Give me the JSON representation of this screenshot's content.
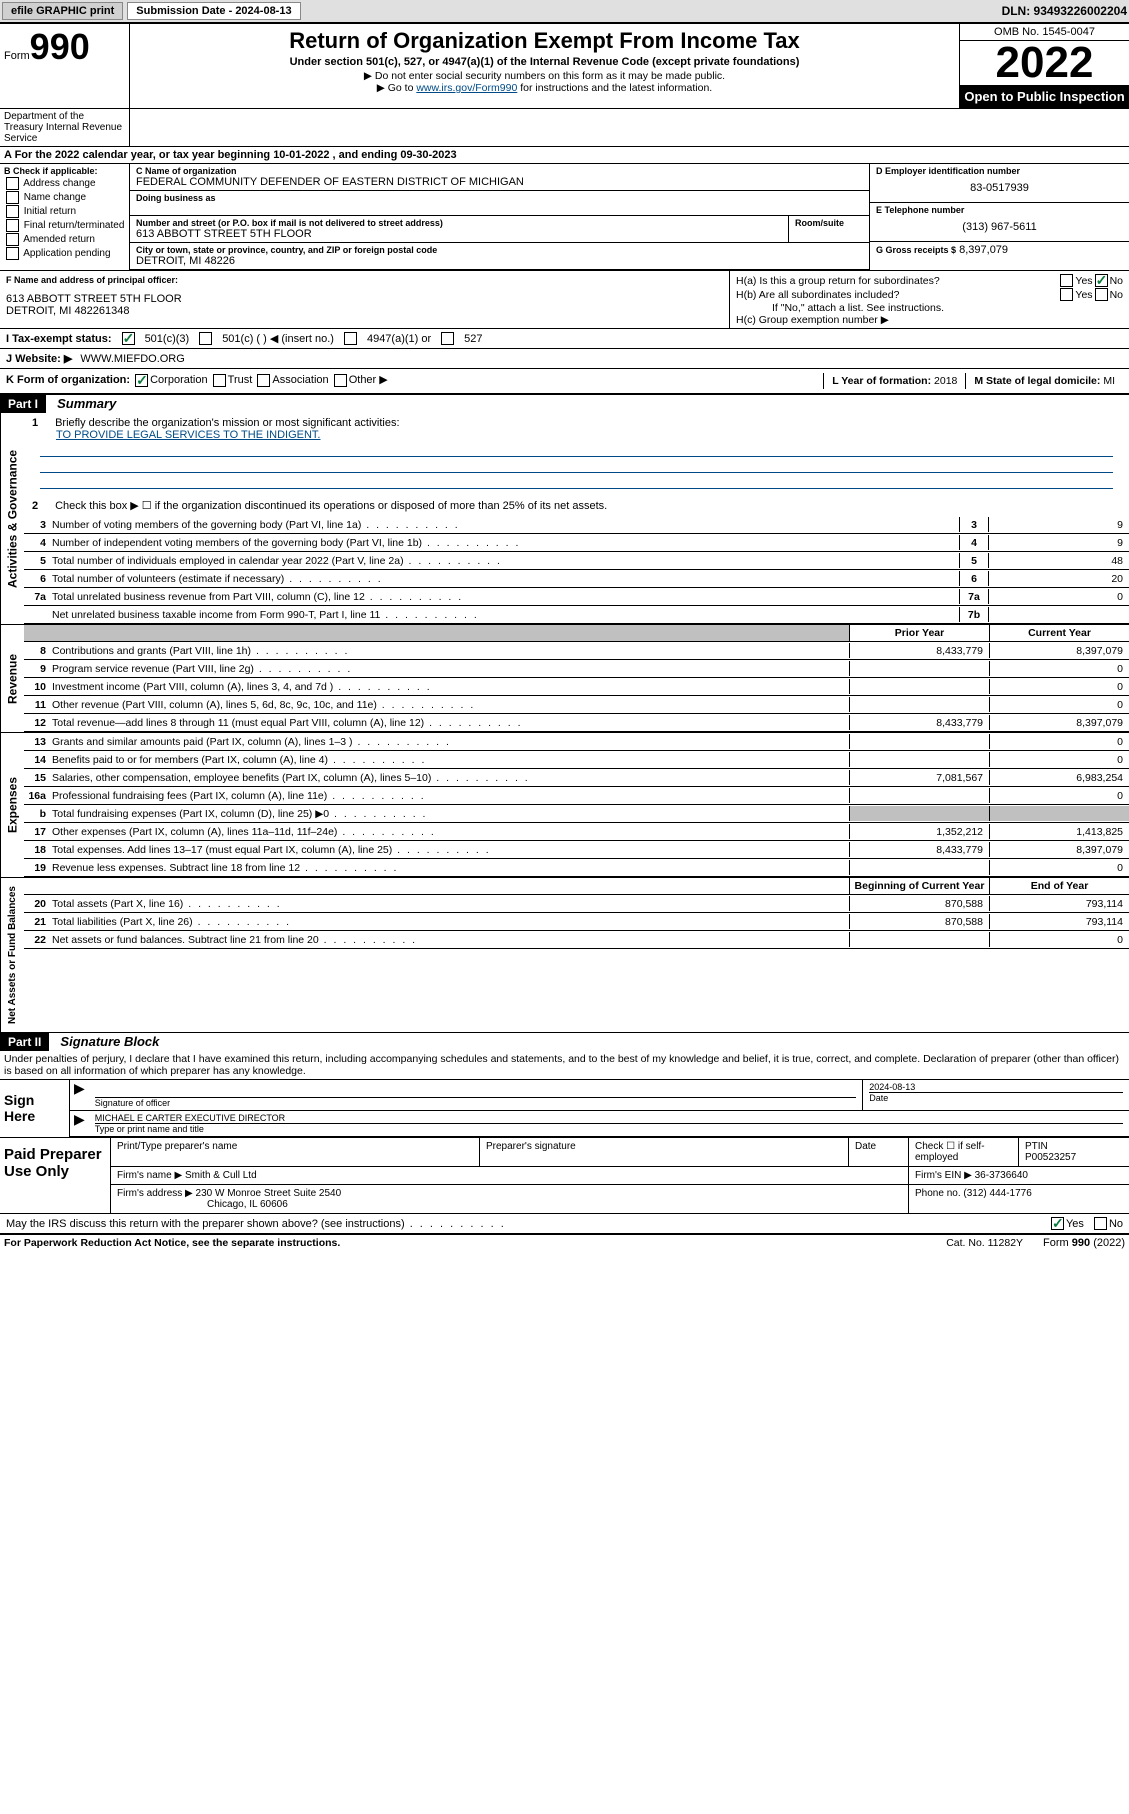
{
  "topbar": {
    "efile_label": "efile GRAPHIC print",
    "submission_label": "Submission Date - 2024-08-13",
    "dln": "DLN: 93493226002204"
  },
  "header": {
    "form_prefix": "Form",
    "form_number": "990",
    "title": "Return of Organization Exempt From Income Tax",
    "subtitle": "Under section 501(c), 527, or 4947(a)(1) of the Internal Revenue Code (except private foundations)",
    "warn": "▶ Do not enter social security numbers on this form as it may be made public.",
    "goto": "▶ Go to ",
    "goto_link": "www.irs.gov/Form990",
    "goto_suffix": " for instructions and the latest information.",
    "omb": "OMB No. 1545-0047",
    "year": "2022",
    "open_public": "Open to Public Inspection",
    "dept": "Department of the Treasury Internal Revenue Service"
  },
  "row_a": "A For the 2022 calendar year, or tax year beginning 10-01-2022   , and ending 09-30-2023",
  "section_b": {
    "label": "B Check if applicable:",
    "opts": [
      "Address change",
      "Name change",
      "Initial return",
      "Final return/terminated",
      "Amended return",
      "Application pending"
    ]
  },
  "section_c": {
    "name_label": "C Name of organization",
    "name": "FEDERAL COMMUNITY DEFENDER OF EASTERN DISTRICT OF MICHIGAN",
    "dba_label": "Doing business as",
    "addr_label": "Number and street (or P.O. box if mail is not delivered to street address)",
    "addr": "613 ABBOTT STREET 5TH FLOOR",
    "room_label": "Room/suite",
    "city_label": "City or town, state or province, country, and ZIP or foreign postal code",
    "city": "DETROIT, MI  48226"
  },
  "section_d": {
    "ein_label": "D Employer identification number",
    "ein": "83-0517939",
    "tel_label": "E Telephone number",
    "tel": "(313) 967-5611",
    "gross_label": "G Gross receipts $",
    "gross": "8,397,079"
  },
  "section_f": {
    "label": "F Name and address of principal officer:",
    "addr1": "613 ABBOTT STREET 5TH FLOOR",
    "addr2": "DETROIT, MI  482261348"
  },
  "section_h": {
    "ha": "H(a)  Is this a group return for subordinates?",
    "hb": "H(b)  Are all subordinates included?",
    "hb_note": "If \"No,\" attach a list. See instructions.",
    "hc": "H(c)  Group exemption number ▶",
    "yes": "Yes",
    "no": "No"
  },
  "row_i": {
    "label": "I   Tax-exempt status:",
    "opt1": "501(c)(3)",
    "opt2": "501(c) (  ) ◀ (insert no.)",
    "opt3": "4947(a)(1) or",
    "opt4": "527"
  },
  "row_j": {
    "label": "J   Website: ▶",
    "value": "WWW.MIEFDO.ORG"
  },
  "row_k": {
    "label": "K Form of organization:",
    "opts": [
      "Corporation",
      "Trust",
      "Association",
      "Other ▶"
    ],
    "l_label": "L Year of formation: ",
    "l_val": "2018",
    "m_label": "M State of legal domicile: ",
    "m_val": "MI"
  },
  "part1": {
    "header": "Part I",
    "title": "Summary",
    "line1_label": "Briefly describe the organization's mission or most significant activities:",
    "line1_text": "TO PROVIDE LEGAL SERVICES TO THE INDIGENT.",
    "line2": "Check this box ▶ ☐  if the organization discontinued its operations or disposed of more than 25% of its net assets.",
    "vert_gov": "Activities & Governance",
    "vert_rev": "Revenue",
    "vert_exp": "Expenses",
    "vert_net": "Net Assets or Fund Balances",
    "lines_num": [
      {
        "n": "3",
        "t": "Number of voting members of the governing body (Part VI, line 1a)",
        "box": "3",
        "v": "9"
      },
      {
        "n": "4",
        "t": "Number of independent voting members of the governing body (Part VI, line 1b)",
        "box": "4",
        "v": "9"
      },
      {
        "n": "5",
        "t": "Total number of individuals employed in calendar year 2022 (Part V, line 2a)",
        "box": "5",
        "v": "48"
      },
      {
        "n": "6",
        "t": "Total number of volunteers (estimate if necessary)",
        "box": "6",
        "v": "20"
      },
      {
        "n": "7a",
        "t": "Total unrelated business revenue from Part VIII, column (C), line 12",
        "box": "7a",
        "v": "0"
      },
      {
        "n": "",
        "t": "Net unrelated business taxable income from Form 990-T, Part I, line 11",
        "box": "7b",
        "v": ""
      }
    ],
    "col_prior": "Prior Year",
    "col_current": "Current Year",
    "rev_lines": [
      {
        "n": "8",
        "t": "Contributions and grants (Part VIII, line 1h)",
        "p": "8,433,779",
        "c": "8,397,079"
      },
      {
        "n": "9",
        "t": "Program service revenue (Part VIII, line 2g)",
        "p": "",
        "c": "0"
      },
      {
        "n": "10",
        "t": "Investment income (Part VIII, column (A), lines 3, 4, and 7d )",
        "p": "",
        "c": "0"
      },
      {
        "n": "11",
        "t": "Other revenue (Part VIII, column (A), lines 5, 6d, 8c, 9c, 10c, and 11e)",
        "p": "",
        "c": "0"
      },
      {
        "n": "12",
        "t": "Total revenue—add lines 8 through 11 (must equal Part VIII, column (A), line 12)",
        "p": "8,433,779",
        "c": "8,397,079"
      }
    ],
    "exp_lines": [
      {
        "n": "13",
        "t": "Grants and similar amounts paid (Part IX, column (A), lines 1–3 )",
        "p": "",
        "c": "0"
      },
      {
        "n": "14",
        "t": "Benefits paid to or for members (Part IX, column (A), line 4)",
        "p": "",
        "c": "0"
      },
      {
        "n": "15",
        "t": "Salaries, other compensation, employee benefits (Part IX, column (A), lines 5–10)",
        "p": "7,081,567",
        "c": "6,983,254"
      },
      {
        "n": "16a",
        "t": "Professional fundraising fees (Part IX, column (A), line 11e)",
        "p": "",
        "c": "0"
      },
      {
        "n": "b",
        "t": "Total fundraising expenses (Part IX, column (D), line 25) ▶0",
        "p": "gray",
        "c": "gray"
      },
      {
        "n": "17",
        "t": "Other expenses (Part IX, column (A), lines 11a–11d, 11f–24e)",
        "p": "1,352,212",
        "c": "1,413,825"
      },
      {
        "n": "18",
        "t": "Total expenses. Add lines 13–17 (must equal Part IX, column (A), line 25)",
        "p": "8,433,779",
        "c": "8,397,079"
      },
      {
        "n": "19",
        "t": "Revenue less expenses. Subtract line 18 from line 12",
        "p": "",
        "c": "0"
      }
    ],
    "col_begin": "Beginning of Current Year",
    "col_end": "End of Year",
    "net_lines": [
      {
        "n": "20",
        "t": "Total assets (Part X, line 16)",
        "p": "870,588",
        "c": "793,114"
      },
      {
        "n": "21",
        "t": "Total liabilities (Part X, line 26)",
        "p": "870,588",
        "c": "793,114"
      },
      {
        "n": "22",
        "t": "Net assets or fund balances. Subtract line 21 from line 20",
        "p": "",
        "c": "0"
      }
    ]
  },
  "part2": {
    "header": "Part II",
    "title": "Signature Block",
    "declaration": "Under penalties of perjury, I declare that I have examined this return, including accompanying schedules and statements, and to the best of my knowledge and belief, it is true, correct, and complete. Declaration of preparer (other than officer) is based on all information of which preparer has any knowledge.",
    "sign_here": "Sign Here",
    "sig_officer": "Signature of officer",
    "date": "Date",
    "date_val": "2024-08-13",
    "officer_name": "MICHAEL E CARTER  EXECUTIVE DIRECTOR",
    "type_name": "Type or print name and title",
    "paid_label": "Paid Preparer Use Only",
    "prep_name_label": "Print/Type preparer's name",
    "prep_sig_label": "Preparer's signature",
    "prep_date_label": "Date",
    "check_if": "Check ☐ if self-employed",
    "ptin_label": "PTIN",
    "ptin": "P00523257",
    "firm_name_label": "Firm's name    ▶",
    "firm_name": "Smith & Cull Ltd",
    "firm_ein_label": "Firm's EIN ▶",
    "firm_ein": "36-3736640",
    "firm_addr_label": "Firm's address ▶",
    "firm_addr1": "230 W Monroe Street Suite 2540",
    "firm_addr2": "Chicago, IL  60606",
    "phone_label": "Phone no.",
    "phone": "(312) 444-1776",
    "discuss": "May the IRS discuss this return with the preparer shown above? (see instructions)",
    "yes": "Yes",
    "no": "No"
  },
  "footer": {
    "left": "For Paperwork Reduction Act Notice, see the separate instructions.",
    "mid": "Cat. No. 11282Y",
    "right_prefix": "Form ",
    "right_bold": "990",
    "right_suffix": " (2022)"
  }
}
